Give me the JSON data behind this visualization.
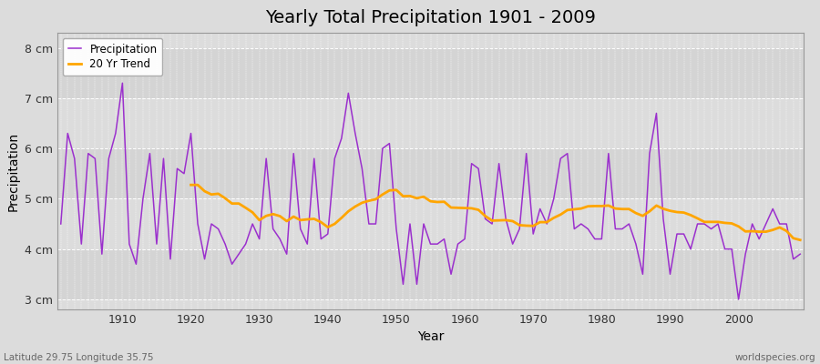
{
  "title": "Yearly Total Precipitation 1901 - 2009",
  "xlabel": "Year",
  "ylabel": "Precipitation",
  "subtitle_left": "Latitude 29.75 Longitude 35.75",
  "subtitle_right": "worldspecies.org",
  "years": [
    1901,
    1902,
    1903,
    1904,
    1905,
    1906,
    1907,
    1908,
    1909,
    1910,
    1911,
    1912,
    1913,
    1914,
    1915,
    1916,
    1917,
    1918,
    1919,
    1920,
    1921,
    1922,
    1923,
    1924,
    1925,
    1926,
    1927,
    1928,
    1929,
    1930,
    1931,
    1932,
    1933,
    1934,
    1935,
    1936,
    1937,
    1938,
    1939,
    1940,
    1941,
    1942,
    1943,
    1944,
    1945,
    1946,
    1947,
    1948,
    1949,
    1950,
    1951,
    1952,
    1953,
    1954,
    1955,
    1956,
    1957,
    1958,
    1959,
    1960,
    1961,
    1962,
    1963,
    1964,
    1965,
    1966,
    1967,
    1968,
    1969,
    1970,
    1971,
    1972,
    1973,
    1974,
    1975,
    1976,
    1977,
    1978,
    1979,
    1980,
    1981,
    1982,
    1983,
    1984,
    1985,
    1986,
    1987,
    1988,
    1989,
    1990,
    1991,
    1992,
    1993,
    1994,
    1995,
    1996,
    1997,
    1998,
    1999,
    2000,
    2001,
    2002,
    2003,
    2004,
    2005,
    2006,
    2007,
    2008,
    2009
  ],
  "precip": [
    4.5,
    6.3,
    5.8,
    4.1,
    5.9,
    5.8,
    3.9,
    5.8,
    6.3,
    7.3,
    4.1,
    3.7,
    5.0,
    5.9,
    4.1,
    5.8,
    3.8,
    5.6,
    5.5,
    6.3,
    4.5,
    3.8,
    4.5,
    4.4,
    4.1,
    3.7,
    3.9,
    4.1,
    4.5,
    4.2,
    5.8,
    4.4,
    4.2,
    3.9,
    5.9,
    4.4,
    4.1,
    5.8,
    4.2,
    4.3,
    5.8,
    6.2,
    7.1,
    6.3,
    5.6,
    4.5,
    4.5,
    6.0,
    6.1,
    4.4,
    3.3,
    4.5,
    3.3,
    4.5,
    4.1,
    4.1,
    4.2,
    3.5,
    4.1,
    4.2,
    5.7,
    5.6,
    4.6,
    4.5,
    5.7,
    4.6,
    4.1,
    4.4,
    5.9,
    4.3,
    4.8,
    4.5,
    5.0,
    5.8,
    5.9,
    4.4,
    4.5,
    4.4,
    4.2,
    4.2,
    5.9,
    4.4,
    4.4,
    4.5,
    4.1,
    3.5,
    5.9,
    6.7,
    4.6,
    3.5,
    4.3,
    4.3,
    4.0,
    4.5,
    4.5,
    4.4,
    4.5,
    4.0,
    4.0,
    3.0,
    3.9,
    4.5,
    4.2,
    4.5,
    4.8,
    4.5,
    4.5,
    3.8,
    3.9
  ],
  "precip_color": "#9B30CD",
  "trend_color": "#FFA500",
  "bg_color": "#DCDCDC",
  "plot_bg_color": "#DCDCDC",
  "grid_color": "#FFFFFF",
  "ylim": [
    2.8,
    8.3
  ],
  "yticks": [
    3.0,
    4.0,
    5.0,
    6.0,
    7.0,
    8.0
  ],
  "ytick_labels": [
    "3 cm",
    "4 cm",
    "5 cm",
    "6 cm",
    "7 cm",
    "8 cm"
  ],
  "xticks": [
    1910,
    1920,
    1930,
    1940,
    1950,
    1960,
    1970,
    1980,
    1990,
    2000
  ],
  "trend_window": 20,
  "title_fontsize": 14,
  "axis_fontsize": 10,
  "tick_fontsize": 9
}
